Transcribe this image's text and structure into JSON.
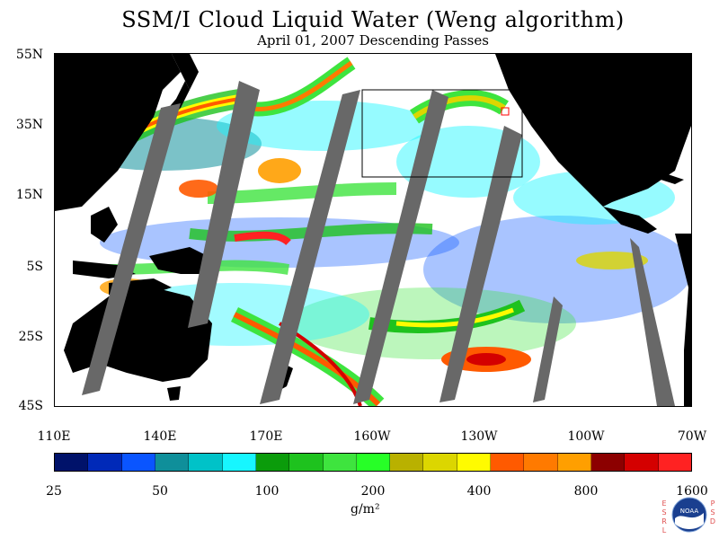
{
  "title": "SSM/I Cloud Liquid Water (Weng algorithm)",
  "subtitle": "April 01, 2007  Descending Passes",
  "lat_labels": [
    "55N",
    "35N",
    "15N",
    "5S",
    "25S",
    "45S"
  ],
  "lon_labels": [
    "110E",
    "140E",
    "170E",
    "160W",
    "130W",
    "100W",
    "70W"
  ],
  "colorbar": {
    "colors": [
      "#00126a",
      "#0029b8",
      "#0a55ff",
      "#0f8f9a",
      "#00c2c8",
      "#17f6ff",
      "#0b9c0b",
      "#1ec21e",
      "#3ee43e",
      "#27ff27",
      "#b9b100",
      "#dcd600",
      "#fffb00",
      "#ff5a00",
      "#ff7a00",
      "#ff9f00",
      "#8c0000",
      "#d40000",
      "#ff2222"
    ],
    "tick_labels": [
      "25",
      "50",
      "100",
      "200",
      "400",
      "800",
      "1600"
    ],
    "units": "g/m²"
  },
  "map": {
    "land_color": "#000000",
    "no_data_color": "#686868",
    "background_color": "#ffffff",
    "box_color": "#000000",
    "small_box_color": "#ff0000"
  },
  "logo": {
    "left_text": "ESRL",
    "right_text": "PSD",
    "emblem_text": "NOAA"
  }
}
